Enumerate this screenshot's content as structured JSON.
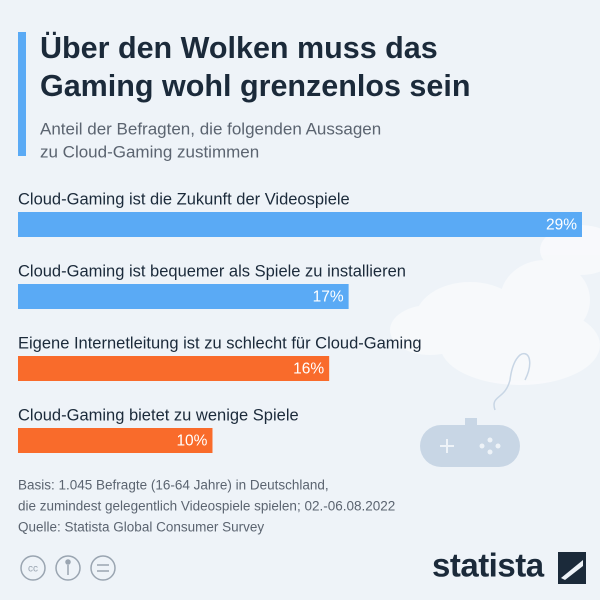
{
  "chart_data": {
    "type": "bar",
    "title": [
      "Über den Wolken muss das",
      "Gaming wohl grenzenlos sein"
    ],
    "subtitle": [
      "Anteil der Befragten, die folgenden Aussagen",
      "zu Cloud-Gaming zustimmen"
    ],
    "categories": [
      "Cloud-Gaming ist die Zukunft der Videospiele",
      "Cloud-Gaming ist bequemer als Spiele zu installieren",
      "Eigene Internetleitung ist zu schlecht für Cloud-Gaming",
      "Cloud-Gaming bietet zu wenige Spiele"
    ],
    "values": [
      29,
      17,
      16,
      10
    ],
    "value_labels": [
      "29%",
      "17%",
      "16%",
      "10%"
    ],
    "colors": [
      "#5aaaf5",
      "#5aaaf5",
      "#f96b2b",
      "#f96b2b"
    ],
    "xlim": [
      0,
      29
    ],
    "notes": [
      "Basis: 1.045 Befragte (16-64 Jahre) in Deutschland,",
      "die zumindest gelegentlich Videospiele spielen; 02.-06.08.2022",
      "Quelle: Statista Global Consumer Survey"
    ],
    "logo": "statista"
  }
}
